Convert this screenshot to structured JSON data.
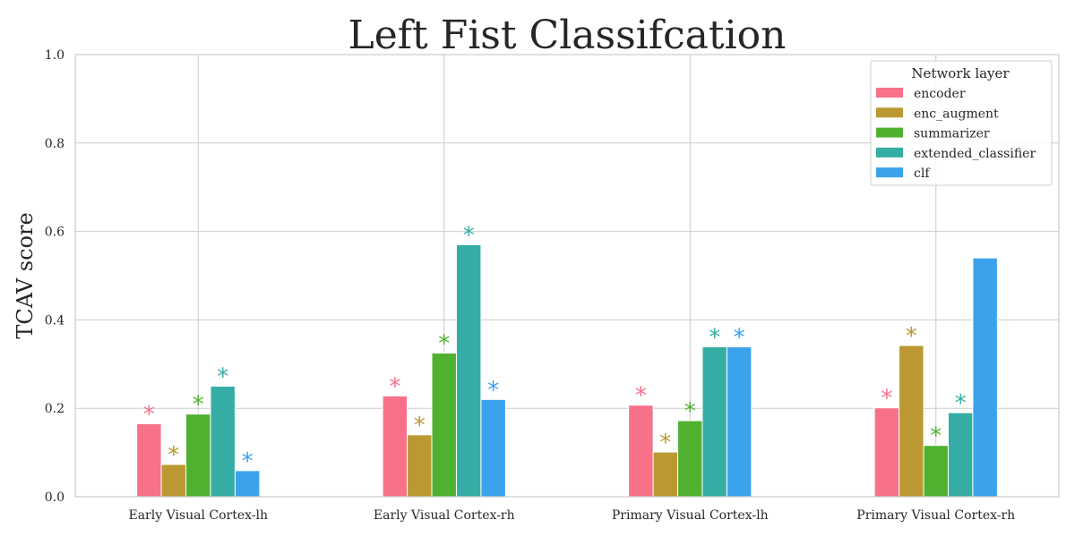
{
  "chart_data": {
    "type": "bar",
    "title": "Left Fist Classifcation",
    "xlabel": "",
    "ylabel": "TCAV score",
    "ylim": [
      0,
      1.0
    ],
    "yticks": [
      "0.0",
      "0.2",
      "0.4",
      "0.6",
      "0.8",
      "1.0"
    ],
    "grid": true,
    "legend_title": "Network layer",
    "legend_position": "top-right",
    "categories": [
      "Early Visual Cortex-lh",
      "Early Visual Cortex-rh",
      "Primary Visual Cortex-lh",
      "Primary Visual Cortex-rh"
    ],
    "significance_marker": "*",
    "series": [
      {
        "name": "encoder",
        "color": "#f77189",
        "values": [
          0.165,
          0.228,
          0.207,
          0.201
        ],
        "significant": [
          true,
          true,
          true,
          true
        ]
      },
      {
        "name": "enc_augment",
        "color": "#bb9832",
        "values": [
          0.073,
          0.14,
          0.101,
          0.342
        ],
        "significant": [
          true,
          true,
          true,
          true
        ]
      },
      {
        "name": "summarizer",
        "color": "#50b131",
        "values": [
          0.187,
          0.325,
          0.172,
          0.116
        ],
        "significant": [
          true,
          true,
          true,
          true
        ]
      },
      {
        "name": "extended_classifier",
        "color": "#36ada4",
        "values": [
          0.25,
          0.57,
          0.339,
          0.19
        ],
        "significant": [
          true,
          true,
          true,
          true
        ]
      },
      {
        "name": "clf",
        "color": "#3ba3ec",
        "values": [
          0.059,
          0.22,
          0.339,
          0.54
        ],
        "significant": [
          true,
          true,
          true,
          false
        ]
      }
    ]
  }
}
